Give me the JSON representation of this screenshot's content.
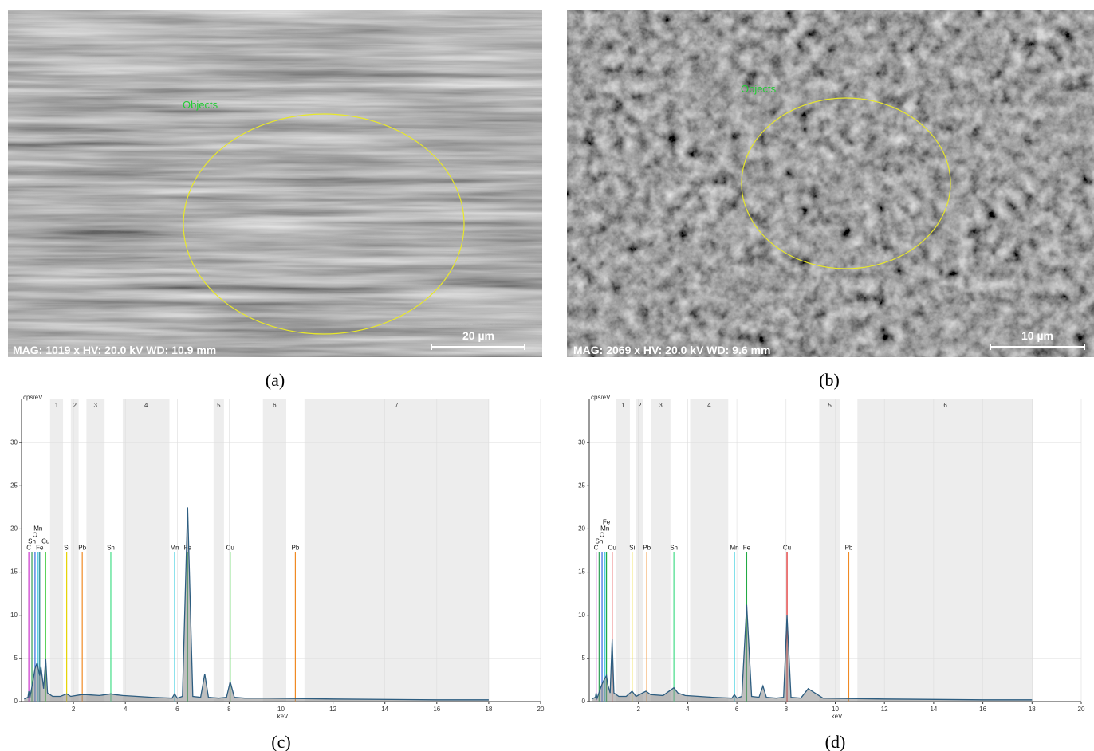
{
  "images": [
    {
      "annotation": "Objects",
      "info": "MAG: 1019 x  HV: 20.0 kV  WD: 10.9 mm",
      "scale_bar": "20 µm",
      "caption": "(a)"
    },
    {
      "annotation": "Objects",
      "info": "MAG: 2069 x  HV: 20.0 kV  WD: 9.6 mm",
      "scale_bar": "10 µm",
      "caption": "(b)"
    }
  ],
  "chart_data": [
    {
      "type": "line",
      "caption": "(c)",
      "y_label": "cps/eV",
      "x_label": "keV",
      "xlim": [
        0,
        20
      ],
      "ylim": [
        0,
        35
      ],
      "xticks": [
        2,
        4,
        6,
        8,
        10,
        12,
        14,
        16,
        18,
        20
      ],
      "yticks": [
        0,
        5,
        10,
        15,
        20,
        25,
        30
      ],
      "grid": true,
      "regions": [
        {
          "label": "1",
          "range": [
            1.1,
            1.6
          ]
        },
        {
          "label": "2",
          "range": [
            1.9,
            2.2
          ]
        },
        {
          "label": "3",
          "range": [
            2.5,
            3.2
          ]
        },
        {
          "label": "4",
          "range": [
            3.9,
            5.7
          ]
        },
        {
          "label": "5",
          "range": [
            7.4,
            7.8
          ]
        },
        {
          "label": "6",
          "range": [
            9.3,
            10.2
          ]
        },
        {
          "label": "7",
          "range": [
            10.9,
            18.0
          ]
        }
      ],
      "elements": [
        {
          "name": "C",
          "energy": 0.28,
          "intensity": 17.3,
          "color": "#cc33cc"
        },
        {
          "name": "Sn",
          "energy": 0.4,
          "intensity": 17.3,
          "color": "#2f9e55"
        },
        {
          "name": "O",
          "energy": 0.52,
          "intensity": 17.3,
          "color": "#3366dd"
        },
        {
          "name": "Mn",
          "energy": 0.64,
          "intensity": 17.3,
          "color": "#33c3dd"
        },
        {
          "name": "Fe",
          "energy": 0.7,
          "intensity": 17.3,
          "color": "#1f7a8c"
        },
        {
          "name": "Cu",
          "energy": 0.93,
          "intensity": 17.3,
          "color": "#44cc44"
        },
        {
          "name": "Si",
          "energy": 1.74,
          "intensity": 17.3,
          "color": "#e6d200"
        },
        {
          "name": "Pb",
          "energy": 2.34,
          "intensity": 17.3,
          "color": "#f08a24"
        },
        {
          "name": "Sn",
          "energy": 3.44,
          "intensity": 17.3,
          "color": "#44dd88"
        },
        {
          "name": "Mn",
          "energy": 5.9,
          "intensity": 17.3,
          "color": "#33ccdd"
        },
        {
          "name": "Fe",
          "energy": 6.4,
          "intensity": 17.3,
          "color": "#22aa44"
        },
        {
          "name": "Cu",
          "energy": 8.04,
          "intensity": 17.3,
          "color": "#44cc44"
        },
        {
          "name": "Pb",
          "energy": 10.55,
          "intensity": 17.3,
          "color": "#f08a24"
        }
      ],
      "spectrum": {
        "color": "#2d5d80",
        "x": [
          0.1,
          0.25,
          0.28,
          0.32,
          0.45,
          0.52,
          0.6,
          0.7,
          0.75,
          0.85,
          0.93,
          1.0,
          1.2,
          1.5,
          1.74,
          1.9,
          2.3,
          2.5,
          3.0,
          3.44,
          3.6,
          3.9,
          5.0,
          5.8,
          5.9,
          6.0,
          6.2,
          6.4,
          6.6,
          6.9,
          7.06,
          7.2,
          7.6,
          7.9,
          8.04,
          8.2,
          8.6,
          8.9,
          9.5,
          12,
          16,
          18
        ],
        "values": [
          0.3,
          0.5,
          1.2,
          0.4,
          2.5,
          3.8,
          4.5,
          3.0,
          4.0,
          1.5,
          5.0,
          1.0,
          0.6,
          0.6,
          0.9,
          0.6,
          0.8,
          0.8,
          0.7,
          0.9,
          0.8,
          0.7,
          0.5,
          0.4,
          0.9,
          0.4,
          0.6,
          22.5,
          0.6,
          0.5,
          3.2,
          0.5,
          0.4,
          0.5,
          2.3,
          0.5,
          0.4,
          0.4,
          0.4,
          0.3,
          0.2,
          0.2
        ]
      }
    },
    {
      "type": "line",
      "caption": "(d)",
      "y_label": "cps/eV",
      "x_label": "keV",
      "xlim": [
        0,
        20
      ],
      "ylim": [
        0,
        35
      ],
      "xticks": [
        2,
        4,
        6,
        8,
        10,
        12,
        14,
        16,
        18,
        20
      ],
      "yticks": [
        0,
        5,
        10,
        15,
        20,
        25,
        30
      ],
      "grid": true,
      "regions": [
        {
          "label": "1",
          "range": [
            1.1,
            1.65
          ]
        },
        {
          "label": "2",
          "range": [
            1.9,
            2.2
          ]
        },
        {
          "label": "3",
          "range": [
            2.5,
            3.3
          ]
        },
        {
          "label": "4",
          "range": [
            4.1,
            5.65
          ]
        },
        {
          "label": "5",
          "range": [
            9.35,
            10.2
          ]
        },
        {
          "label": "6",
          "range": [
            10.9,
            18.05
          ]
        }
      ],
      "elements": [
        {
          "name": "C",
          "energy": 0.28,
          "intensity": 17.3,
          "color": "#cc33cc"
        },
        {
          "name": "Sn",
          "energy": 0.4,
          "intensity": 17.3,
          "color": "#2f9e55"
        },
        {
          "name": "O",
          "energy": 0.52,
          "intensity": 17.3,
          "color": "#3366dd"
        },
        {
          "name": "Mn",
          "energy": 0.64,
          "intensity": 17.3,
          "color": "#33c3dd"
        },
        {
          "name": "Fe",
          "energy": 0.7,
          "intensity": 17.3,
          "color": "#22aa44"
        },
        {
          "name": "Cu",
          "energy": 0.93,
          "intensity": 17.3,
          "color": "#dd2222"
        },
        {
          "name": "Si",
          "energy": 1.74,
          "intensity": 17.3,
          "color": "#e6d200"
        },
        {
          "name": "Pb",
          "energy": 2.34,
          "intensity": 17.3,
          "color": "#f08a24"
        },
        {
          "name": "Sn",
          "energy": 3.44,
          "intensity": 17.3,
          "color": "#44dd88"
        },
        {
          "name": "Mn",
          "energy": 5.9,
          "intensity": 17.3,
          "color": "#33ccdd"
        },
        {
          "name": "Fe",
          "energy": 6.4,
          "intensity": 17.3,
          "color": "#22aa44"
        },
        {
          "name": "Cu",
          "energy": 8.04,
          "intensity": 17.3,
          "color": "#dd2222"
        },
        {
          "name": "Pb",
          "energy": 10.55,
          "intensity": 17.3,
          "color": "#f08a24"
        }
      ],
      "spectrum": {
        "color": "#2d5d80",
        "x": [
          0.1,
          0.25,
          0.28,
          0.32,
          0.45,
          0.52,
          0.6,
          0.7,
          0.75,
          0.85,
          0.93,
          1.0,
          1.2,
          1.5,
          1.74,
          1.9,
          2.3,
          2.5,
          3.0,
          3.44,
          3.6,
          3.9,
          5.0,
          5.8,
          5.9,
          6.0,
          6.2,
          6.4,
          6.6,
          6.9,
          7.06,
          7.2,
          7.6,
          7.9,
          8.04,
          8.2,
          8.6,
          8.9,
          9.5,
          12,
          16,
          18
        ],
        "values": [
          0.3,
          0.5,
          1.0,
          0.4,
          1.5,
          2.0,
          2.5,
          3.0,
          2.0,
          1.0,
          7.2,
          1.0,
          0.6,
          0.6,
          1.2,
          0.6,
          1.2,
          0.8,
          0.7,
          1.6,
          1.0,
          0.7,
          0.5,
          0.4,
          0.8,
          0.4,
          0.6,
          11.2,
          0.6,
          0.5,
          1.8,
          0.5,
          0.4,
          0.5,
          10.0,
          0.5,
          0.4,
          1.5,
          0.4,
          0.3,
          0.2,
          0.2
        ]
      }
    }
  ]
}
